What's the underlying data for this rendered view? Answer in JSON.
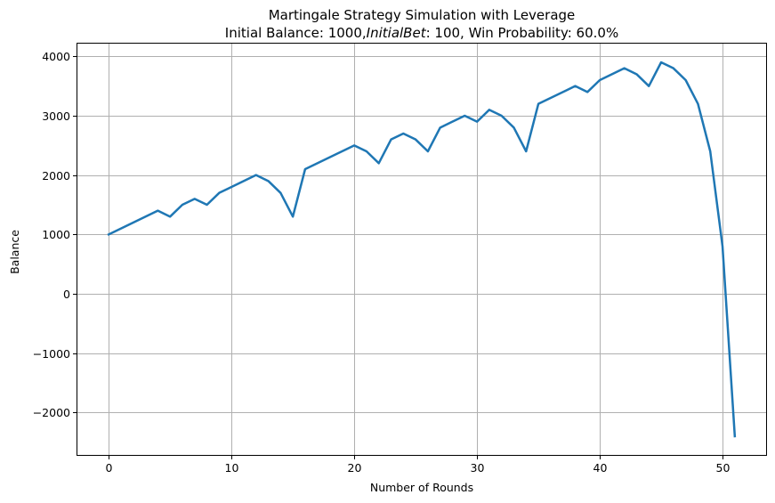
{
  "chart_data": {
    "type": "line",
    "title_line1": "Martingale Strategy Simulation with Leverage",
    "title_line2": {
      "part1": "Initial Balance: 1000,",
      "part2": "InitialBet",
      "part3": ": 100, Win Probability: 60.0%"
    },
    "xlabel": "Number of Rounds",
    "ylabel": "Balance",
    "xlim": [
      -2.55,
      53.55
    ],
    "ylim": [
      -2715,
      4215
    ],
    "xticks": [
      0,
      10,
      20,
      30,
      40,
      50
    ],
    "xtick_labels": [
      "0",
      "10",
      "20",
      "30",
      "40",
      "50"
    ],
    "yticks": [
      -2000,
      -1000,
      0,
      1000,
      2000,
      3000,
      4000
    ],
    "ytick_labels": [
      "−2000",
      "−1000",
      "0",
      "1000",
      "2000",
      "3000",
      "4000"
    ],
    "grid": true,
    "line_color": "#1f77b4",
    "series": [
      {
        "x": [
          0,
          4,
          5,
          6,
          7,
          8,
          9,
          12,
          13,
          14,
          15,
          16,
          20,
          21,
          22,
          23,
          24,
          25,
          26,
          27,
          29,
          30,
          31,
          32,
          33,
          34,
          35,
          38,
          39,
          40,
          42,
          43,
          44,
          45,
          46,
          47,
          48,
          49,
          50,
          51
        ],
        "values": [
          1000,
          1400,
          1300,
          1500,
          1600,
          1500,
          1700,
          2000,
          1900,
          1700,
          1300,
          2100,
          2500,
          2400,
          2200,
          2600,
          2700,
          2600,
          2400,
          2800,
          3000,
          2900,
          3100,
          3000,
          2800,
          2400,
          3200,
          3500,
          3400,
          3600,
          3800,
          3700,
          3500,
          3900,
          3800,
          3600,
          3200,
          2400,
          800,
          -2400
        ]
      }
    ]
  }
}
